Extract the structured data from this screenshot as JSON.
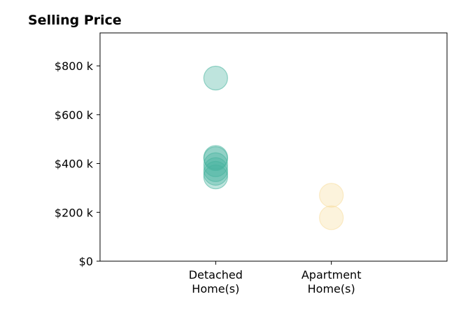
{
  "chart_data": {
    "type": "scatter",
    "title": "Selling Price",
    "xlabel": "",
    "ylabel": "",
    "categories": [
      [
        "Detached",
        "Home(s)"
      ],
      [
        "Apartment",
        "Home(s)"
      ]
    ],
    "ylim": [
      0,
      935000
    ],
    "yticks": [
      {
        "value": 0,
        "label": "$0"
      },
      {
        "value": 200000,
        "label": "$200 k"
      },
      {
        "value": 400000,
        "label": "$400 k"
      },
      {
        "value": 600000,
        "label": "$600 k"
      },
      {
        "value": 800000,
        "label": "$800 k"
      }
    ],
    "grid": false,
    "legend": "none",
    "series": [
      {
        "category": 0,
        "color": "#45b39d",
        "values": [
          750000,
          425000,
          420000,
          395000,
          375000,
          360000,
          345000
        ]
      },
      {
        "category": 1,
        "color": "#f7dc9c",
        "values": [
          270000,
          178000
        ]
      }
    ]
  }
}
